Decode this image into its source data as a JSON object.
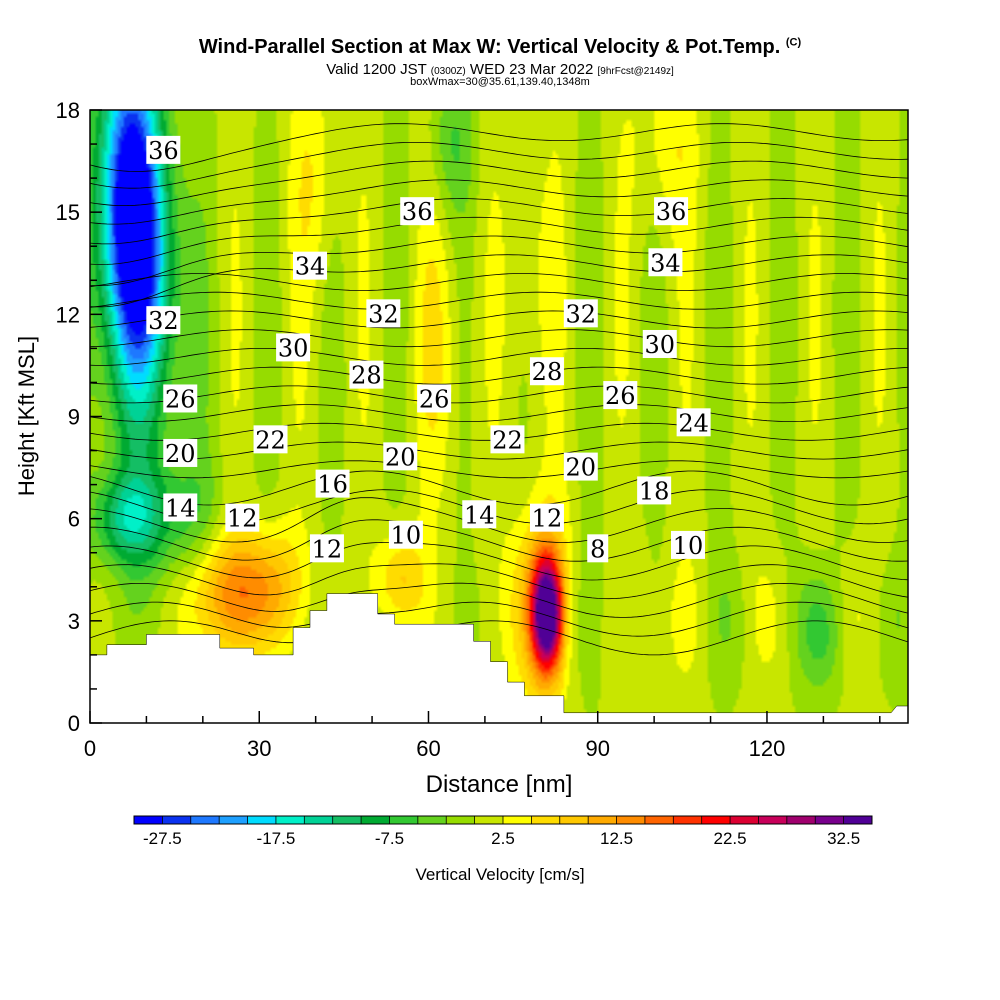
{
  "header": {
    "title": "Wind-Parallel Section at Max W: Vertical Velocity & Pot.Temp.",
    "title_mark": "(C)",
    "valid_prefix": "Valid 1200 JST",
    "valid_utc": "(0300Z)",
    "valid_date": "WED 23 Mar 2022",
    "forecast": "[9hrFcst@2149z]",
    "box_info": "boxWmax=30@35.61,139.40,1348m"
  },
  "chart_data": {
    "type": "heatmap",
    "title": "Wind-Parallel Section at Max W: Vertical Velocity & Pot.Temp.",
    "xlabel": "Distance [nm]",
    "ylabel": "Height [Kft MSL]",
    "xlim": [
      0,
      145
    ],
    "ylim": [
      0,
      18
    ],
    "x_ticks": [
      "0",
      "30",
      "60",
      "90",
      "120"
    ],
    "y_ticks": [
      "0",
      "3",
      "6",
      "9",
      "12",
      "15",
      "18"
    ],
    "colorbar": {
      "label": "Vertical Velocity [cm/s]",
      "tick_labels": [
        "-27.5",
        "-17.5",
        "-7.5",
        "2.5",
        "12.5",
        "22.5",
        "32.5"
      ],
      "levels": [
        -30,
        35
      ],
      "colors": [
        "#0000ff",
        "#0a32f0",
        "#1e78ff",
        "#1ea0ff",
        "#00dcff",
        "#00f0c8",
        "#00d296",
        "#14be64",
        "#00aa32",
        "#32c832",
        "#64d21e",
        "#96dc00",
        "#c8e600",
        "#ffff00",
        "#ffdc00",
        "#ffc800",
        "#ffaa00",
        "#ff8c00",
        "#ff6400",
        "#ff3200",
        "#ff0000",
        "#dc0032",
        "#c8005a",
        "#a0006e",
        "#78008c",
        "#500096"
      ]
    },
    "velocity_features": [
      {
        "x": 7,
        "y": 16,
        "w": -27,
        "sx": 4,
        "sy": 3.0
      },
      {
        "x": 9,
        "y": 13,
        "w": -15,
        "sx": 4,
        "sy": 2.5
      },
      {
        "x": 9,
        "y": 10,
        "w": -6,
        "sx": 6,
        "sy": 4
      },
      {
        "x": 6,
        "y": 6,
        "w": -10,
        "sx": 4,
        "sy": 0.9
      },
      {
        "x": 15,
        "y": 6,
        "w": -6,
        "sx": 6,
        "sy": 1.2
      },
      {
        "x": 25,
        "y": 3.8,
        "w": 13,
        "sx": 5,
        "sy": 1.3
      },
      {
        "x": 33,
        "y": 4,
        "w": 7,
        "sx": 4,
        "sy": 1.2
      },
      {
        "x": 55,
        "y": 4.2,
        "w": 8,
        "sx": 3,
        "sy": 1.0
      },
      {
        "x": 81,
        "y": 3.2,
        "w": 34,
        "sx": 1.8,
        "sy": 1.1
      },
      {
        "x": 80,
        "y": 3.5,
        "w": 12,
        "sx": 3.5,
        "sy": 2.0
      },
      {
        "x": 89,
        "y": 3,
        "w": -5,
        "sx": 2,
        "sy": 1.5
      },
      {
        "x": 98,
        "y": 3,
        "w": 4,
        "sx": 2,
        "sy": 1.5
      },
      {
        "x": 130,
        "y": 2.6,
        "w": -5,
        "sx": 3,
        "sy": 1.2
      },
      {
        "x": 40,
        "y": 16,
        "w": 4,
        "sx": 3,
        "sy": 2.5
      },
      {
        "x": 64,
        "y": 17,
        "w": -5,
        "sx": 3,
        "sy": 1.5
      },
      {
        "x": 102,
        "y": 17,
        "w": 4,
        "sx": 4,
        "sy": 2
      },
      {
        "x": 62,
        "y": 11,
        "w": 4,
        "sx": 3,
        "sy": 3
      },
      {
        "x": 78,
        "y": 13,
        "w": 3,
        "sx": 3,
        "sy": 3
      }
    ],
    "terrain": [
      [
        0,
        2
      ],
      [
        3,
        2
      ],
      [
        3,
        2.3
      ],
      [
        10,
        2.3
      ],
      [
        10,
        2.6
      ],
      [
        23,
        2.6
      ],
      [
        23,
        2.2
      ],
      [
        29,
        2.2
      ],
      [
        29,
        2
      ],
      [
        36,
        2
      ],
      [
        36,
        2.8
      ],
      [
        39,
        2.8
      ],
      [
        39,
        3.3
      ],
      [
        42,
        3.3
      ],
      [
        42,
        3.8
      ],
      [
        51,
        3.8
      ],
      [
        51,
        3.2
      ],
      [
        54,
        3.2
      ],
      [
        54,
        2.9
      ],
      [
        68,
        2.9
      ],
      [
        68,
        2.4
      ],
      [
        71,
        2.4
      ],
      [
        71,
        1.8
      ],
      [
        74,
        1.8
      ],
      [
        74,
        1.2
      ],
      [
        77,
        1.2
      ],
      [
        77,
        0.8
      ],
      [
        84,
        0.8
      ],
      [
        84,
        0.3
      ],
      [
        142,
        0.3
      ],
      [
        143,
        0.5
      ],
      [
        145,
        0.5
      ]
    ],
    "theta_labels": [
      {
        "text": "36",
        "x": 13,
        "y": 16.8
      },
      {
        "text": "36",
        "x": 58,
        "y": 15.0
      },
      {
        "text": "36",
        "x": 103,
        "y": 15.0
      },
      {
        "text": "34",
        "x": 39,
        "y": 13.4
      },
      {
        "text": "34",
        "x": 102,
        "y": 13.5
      },
      {
        "text": "32",
        "x": 13,
        "y": 11.8
      },
      {
        "text": "32",
        "x": 52,
        "y": 12.0
      },
      {
        "text": "32",
        "x": 87,
        "y": 12.0
      },
      {
        "text": "30",
        "x": 36,
        "y": 11.0
      },
      {
        "text": "30",
        "x": 101,
        "y": 11.1
      },
      {
        "text": "28",
        "x": 49,
        "y": 10.2
      },
      {
        "text": "28",
        "x": 81,
        "y": 10.3
      },
      {
        "text": "26",
        "x": 16,
        "y": 9.5
      },
      {
        "text": "26",
        "x": 61,
        "y": 9.5
      },
      {
        "text": "26",
        "x": 94,
        "y": 9.6
      },
      {
        "text": "24",
        "x": 107,
        "y": 8.8
      },
      {
        "text": "22",
        "x": 32,
        "y": 8.3
      },
      {
        "text": "22",
        "x": 74,
        "y": 8.3
      },
      {
        "text": "20",
        "x": 16,
        "y": 7.9
      },
      {
        "text": "20",
        "x": 55,
        "y": 7.8
      },
      {
        "text": "20",
        "x": 87,
        "y": 7.5
      },
      {
        "text": "18",
        "x": 100,
        "y": 6.8
      },
      {
        "text": "16",
        "x": 43,
        "y": 7.0
      },
      {
        "text": "14",
        "x": 16,
        "y": 6.3
      },
      {
        "text": "14",
        "x": 69,
        "y": 6.1
      },
      {
        "text": "12",
        "x": 27,
        "y": 6.0
      },
      {
        "text": "12",
        "x": 81,
        "y": 6.0
      },
      {
        "text": "12",
        "x": 42,
        "y": 5.1
      },
      {
        "text": "10",
        "x": 56,
        "y": 5.5
      },
      {
        "text": "10",
        "x": 106,
        "y": 5.2
      },
      {
        "text": "8",
        "x": 90,
        "y": 5.1
      }
    ]
  }
}
